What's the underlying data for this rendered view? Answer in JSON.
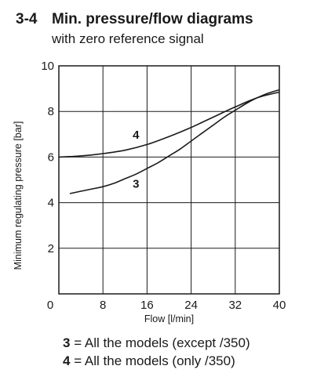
{
  "heading": {
    "number": "3-4",
    "title": "Min. pressure/flow diagrams",
    "subtitle": "with zero reference signal"
  },
  "chart_data": {
    "type": "line",
    "xlabel": "Flow [l/min]",
    "ylabel": "Minimum regulating pressure [bar]",
    "xlim": [
      0,
      40
    ],
    "ylim": [
      0,
      10
    ],
    "xticks": [
      0,
      8,
      16,
      24,
      32,
      40
    ],
    "yticks": [
      2,
      4,
      6,
      8,
      10
    ],
    "grid": true,
    "series": [
      {
        "name": "3",
        "x": [
          2,
          4,
          6,
          8,
          10,
          12,
          14,
          16,
          18,
          20,
          22,
          24,
          26,
          28,
          30,
          32,
          34,
          36,
          38,
          40
        ],
        "y": [
          4.4,
          4.5,
          4.6,
          4.7,
          4.85,
          5.05,
          5.25,
          5.5,
          5.75,
          6.05,
          6.35,
          6.7,
          7.05,
          7.4,
          7.75,
          8.05,
          8.35,
          8.6,
          8.8,
          8.95
        ]
      },
      {
        "name": "4",
        "x": [
          0,
          4,
          8,
          12,
          16,
          20,
          24,
          28,
          32,
          36,
          40
        ],
        "y": [
          6.0,
          6.05,
          6.15,
          6.3,
          6.55,
          6.9,
          7.3,
          7.75,
          8.2,
          8.6,
          8.85
        ]
      }
    ]
  },
  "legend": [
    {
      "key": "3",
      "text": "= All the models (except /350)"
    },
    {
      "key": "4",
      "text": "= All the models (only /350)"
    }
  ]
}
